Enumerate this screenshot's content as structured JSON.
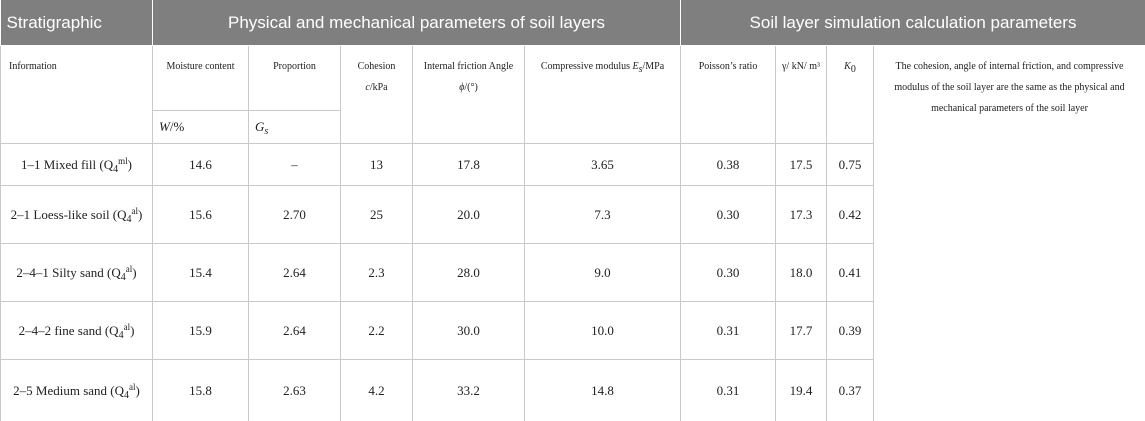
{
  "table": {
    "groups": [
      "Stratigraphic",
      "Physical and mechanical parameters of soil layers",
      "Soil layer simulation calculation parameters"
    ],
    "columns": [
      [
        {
          "text": "Information"
        }
      ],
      [
        {
          "text": "Moisture content"
        }
      ],
      [
        {
          "text": "Proportion"
        }
      ],
      [
        {
          "text": "Cohesion "
        },
        {
          "text": "c",
          "style": "italic"
        },
        {
          "text": "/kPa"
        }
      ],
      [
        {
          "text": "Internal friction Angle "
        },
        {
          "text": "ϕ",
          "style": "italic"
        },
        {
          "text": "/(°)"
        }
      ],
      [
        {
          "text": "Compressive modulus "
        },
        {
          "text": "E",
          "style": "italic"
        },
        {
          "text": "s",
          "style": "italic-sub"
        },
        {
          "text": "/MPa"
        }
      ],
      [
        {
          "text": "Poisson’s ratio"
        }
      ],
      [
        {
          "text": "γ/ kN/ m³"
        }
      ],
      [
        {
          "text": "K",
          "style": "italic"
        },
        {
          "text": "0",
          "style": "sub"
        }
      ]
    ],
    "units": [
      [
        {
          "text": "W",
          "style": "italic"
        },
        {
          "text": "/%"
        }
      ],
      [
        {
          "text": "G",
          "style": "italic"
        },
        {
          "text": "s",
          "style": "italic-sub"
        }
      ]
    ],
    "note": "The cohesion, angle of internal friction, and compressive modulus of the soil layer are the same as the physical and mechanical parameters of the soil layer",
    "rows": [
      {
        "label": [
          {
            "text": "1–1 Mixed fill (Q"
          },
          {
            "text": "4",
            "style": "sub"
          },
          {
            "text": "ml",
            "style": "sup"
          },
          {
            "text": ")"
          }
        ],
        "values": [
          "14.6",
          "–",
          "13",
          "17.8",
          "3.65",
          "0.38",
          "17.5",
          "0.75"
        ]
      },
      {
        "label": [
          {
            "text": "2–1 Loess-like soil (Q"
          },
          {
            "text": "4",
            "style": "sub"
          },
          {
            "text": "al",
            "style": "sup"
          },
          {
            "text": ")"
          }
        ],
        "values": [
          "15.6",
          "2.70",
          "25",
          "20.0",
          "7.3",
          "0.30",
          "17.3",
          "0.42"
        ]
      },
      {
        "label": [
          {
            "text": "2–4–1 Silty sand (Q"
          },
          {
            "text": "4",
            "style": "sub"
          },
          {
            "text": "al",
            "style": "sup"
          },
          {
            "text": ")"
          }
        ],
        "values": [
          "15.4",
          "2.64",
          "2.3",
          "28.0",
          "9.0",
          "0.30",
          "18.0",
          "0.41"
        ]
      },
      {
        "label": [
          {
            "text": "2–4–2 fine sand (Q"
          },
          {
            "text": "4",
            "style": "sub"
          },
          {
            "text": "al",
            "style": "sup"
          },
          {
            "text": ")"
          }
        ],
        "values": [
          "15.9",
          "2.64",
          "2.2",
          "30.0",
          "10.0",
          "0.31",
          "17.7",
          "0.39"
        ]
      },
      {
        "label": [
          {
            "text": "2–5 Medium sand (Q"
          },
          {
            "text": "4",
            "style": "sub"
          },
          {
            "text": "al",
            "style": "sup"
          },
          {
            "text": ")"
          }
        ],
        "values": [
          "15.8",
          "2.63",
          "4.2",
          "33.2",
          "14.8",
          "0.31",
          "19.4",
          "0.37"
        ]
      }
    ]
  }
}
